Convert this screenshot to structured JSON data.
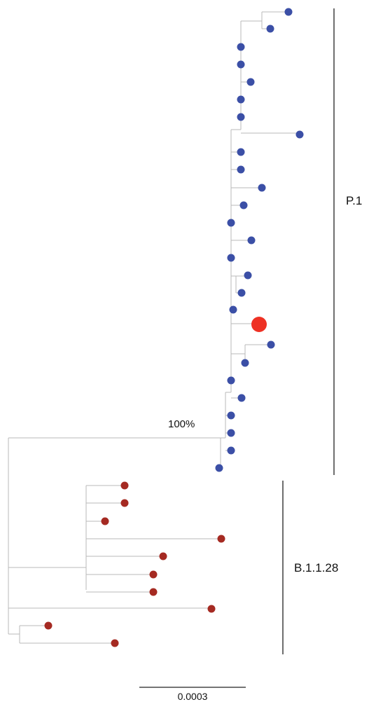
{
  "clades": {
    "p1": {
      "label": "P.1"
    },
    "b1128": {
      "label": "B.1.1.28"
    }
  },
  "support": {
    "p1_node": "100%"
  },
  "scale": {
    "label": "0.0003"
  },
  "colors": {
    "p1_tip": "#3b4fa6",
    "b1128_tip": "#a52a22",
    "highlight_tip": "#ee3124",
    "branch": "#b8b8b8",
    "clade_bar": "#6e6e6e"
  }
}
